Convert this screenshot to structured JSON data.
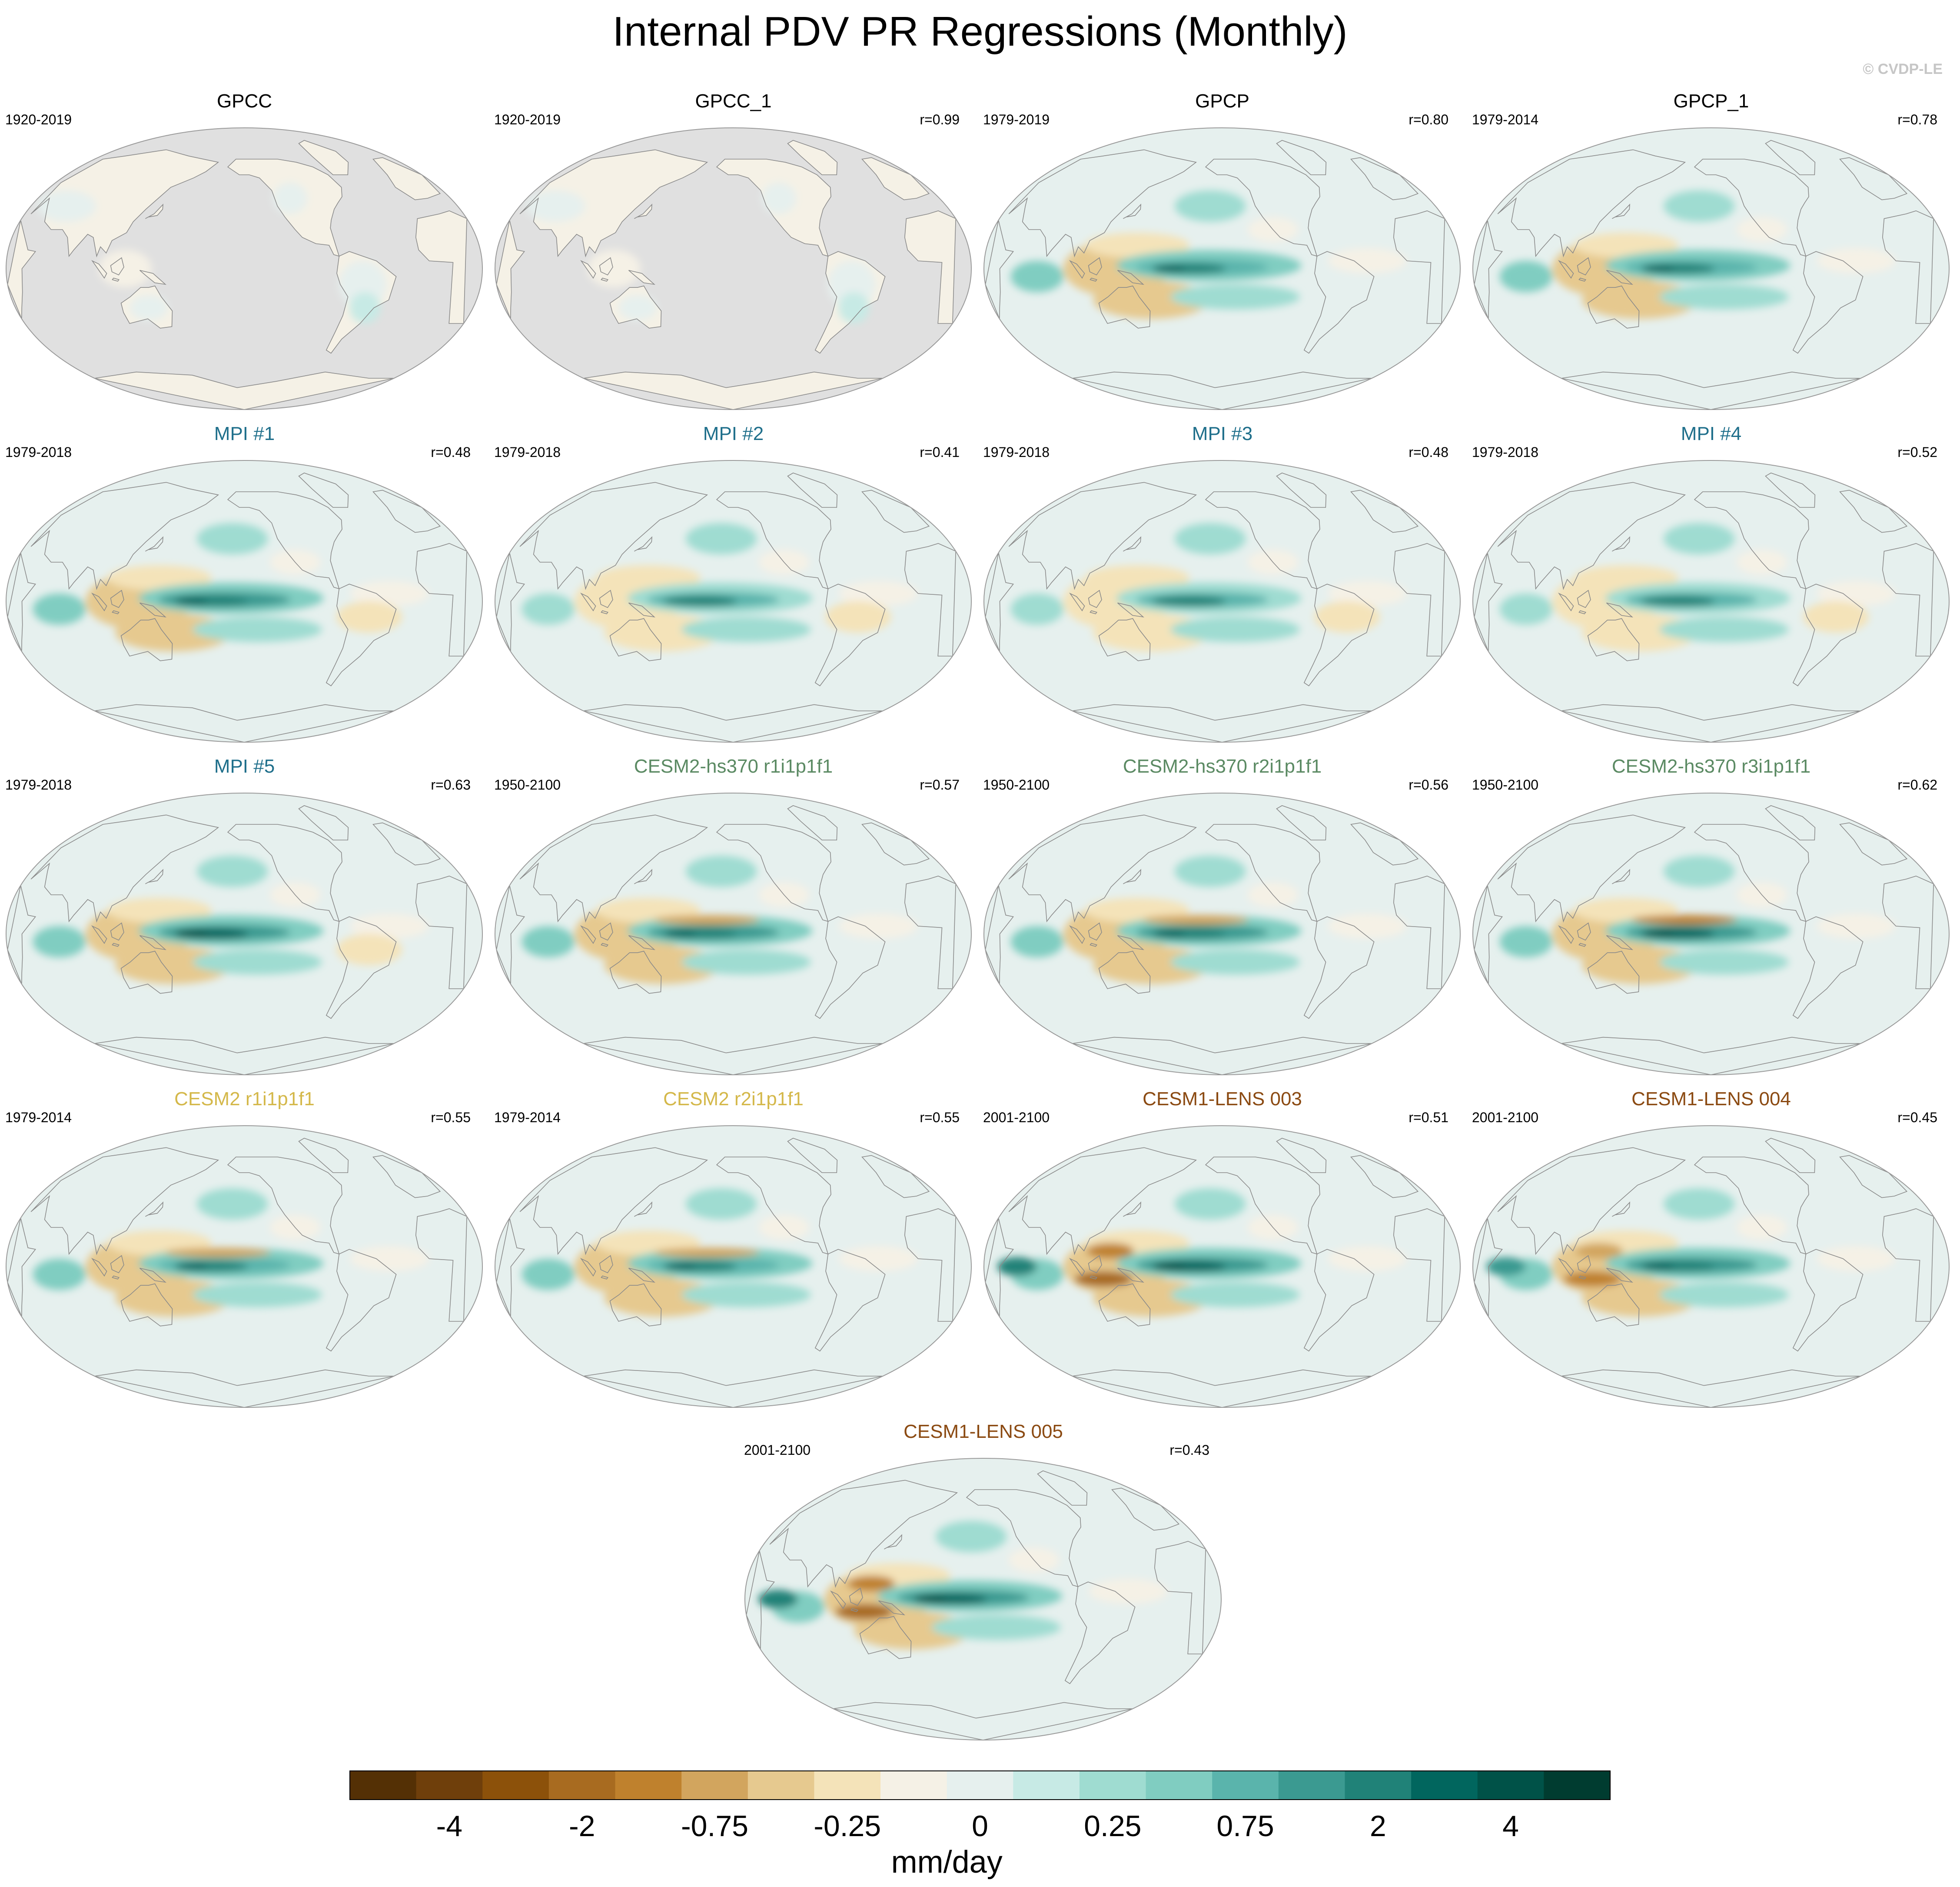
{
  "page": {
    "title": "Internal PDV PR Regressions (Monthly)",
    "credit": "© CVDP-LE"
  },
  "colors": {
    "obs": "#000000",
    "mpi": "#1f6f8b",
    "cesm2_hs370": "#5b8a63",
    "cesm2": "#d4b84a",
    "cesm1_lens": "#8b4a12",
    "land_missing": "#e0e0e0",
    "coast": "#8a8a8a"
  },
  "chart_data": {
    "type": "heatmap",
    "title": "Internal PDV PR Regressions (Monthly)",
    "units": "mm/day",
    "colorbar": {
      "label": "mm/day",
      "tick_labels": [
        "-4",
        "-2",
        "-0.75",
        "-0.25",
        "0",
        "0.25",
        "0.75",
        "2",
        "4"
      ],
      "colors": [
        "#543005",
        "#6f3f0b",
        "#8c510a",
        "#a86b20",
        "#bf812d",
        "#d2a55e",
        "#e6c98f",
        "#f4e3b9",
        "#f5f1e6",
        "#e6f0ee",
        "#c7eae5",
        "#9fdcd1",
        "#80cdc1",
        "#5ab4ac",
        "#3b9a91",
        "#208278",
        "#01665e",
        "#005248",
        "#003c30"
      ]
    },
    "panels": [
      {
        "name": "GPCC",
        "years": "1920-2019",
        "r": "",
        "group": "obs",
        "strength": 0.25,
        "ocean_missing": true
      },
      {
        "name": "GPCC_1",
        "years": "1920-2019",
        "r": "r=0.99",
        "group": "obs",
        "strength": 0.25,
        "ocean_missing": true
      },
      {
        "name": "GPCP",
        "years": "1979-2019",
        "r": "r=0.80",
        "group": "obs",
        "strength": 0.85,
        "ocean_missing": false
      },
      {
        "name": "GPCP_1",
        "years": "1979-2014",
        "r": "r=0.78",
        "group": "obs",
        "strength": 0.85,
        "ocean_missing": false
      },
      {
        "name": "MPI #1",
        "years": "1979-2018",
        "r": "r=0.48",
        "group": "mpi",
        "strength": 0.9,
        "ocean_missing": false
      },
      {
        "name": "MPI #2",
        "years": "1979-2018",
        "r": "r=0.41",
        "group": "mpi",
        "strength": 0.8,
        "ocean_missing": false
      },
      {
        "name": "MPI #3",
        "years": "1979-2018",
        "r": "r=0.48",
        "group": "mpi",
        "strength": 0.8,
        "ocean_missing": false
      },
      {
        "name": "MPI #4",
        "years": "1979-2018",
        "r": "r=0.52",
        "group": "mpi",
        "strength": 0.8,
        "ocean_missing": false
      },
      {
        "name": "MPI #5",
        "years": "1979-2018",
        "r": "r=0.63",
        "group": "mpi",
        "strength": 0.95,
        "ocean_missing": false
      },
      {
        "name": "CESM2-hs370 r1i1p1f1",
        "years": "1950-2100",
        "r": "r=0.57",
        "group": "cesm2_hs370",
        "strength": 0.9,
        "ocean_missing": false
      },
      {
        "name": "CESM2-hs370 r2i1p1f1",
        "years": "1950-2100",
        "r": "r=0.56",
        "group": "cesm2_hs370",
        "strength": 0.9,
        "ocean_missing": false
      },
      {
        "name": "CESM2-hs370 r3i1p1f1",
        "years": "1950-2100",
        "r": "r=0.62",
        "group": "cesm2_hs370",
        "strength": 0.95,
        "ocean_missing": false
      },
      {
        "name": "CESM2 r1i1p1f1",
        "years": "1979-2014",
        "r": "r=0.55",
        "group": "cesm2",
        "strength": 0.85,
        "ocean_missing": false
      },
      {
        "name": "CESM2 r2i1p1f1",
        "years": "1979-2014",
        "r": "r=0.55",
        "group": "cesm2",
        "strength": 0.85,
        "ocean_missing": false
      },
      {
        "name": "CESM1-LENS 003",
        "years": "2001-2100",
        "r": "r=0.51",
        "group": "cesm1_lens",
        "strength": 1.0,
        "ocean_missing": false
      },
      {
        "name": "CESM1-LENS 004",
        "years": "2001-2100",
        "r": "r=0.45",
        "group": "cesm1_lens",
        "strength": 0.9,
        "ocean_missing": false
      },
      {
        "name": "CESM1-LENS 005",
        "years": "2001-2100",
        "r": "r=0.43",
        "group": "cesm1_lens",
        "strength": 1.0,
        "ocean_missing": false
      }
    ]
  }
}
